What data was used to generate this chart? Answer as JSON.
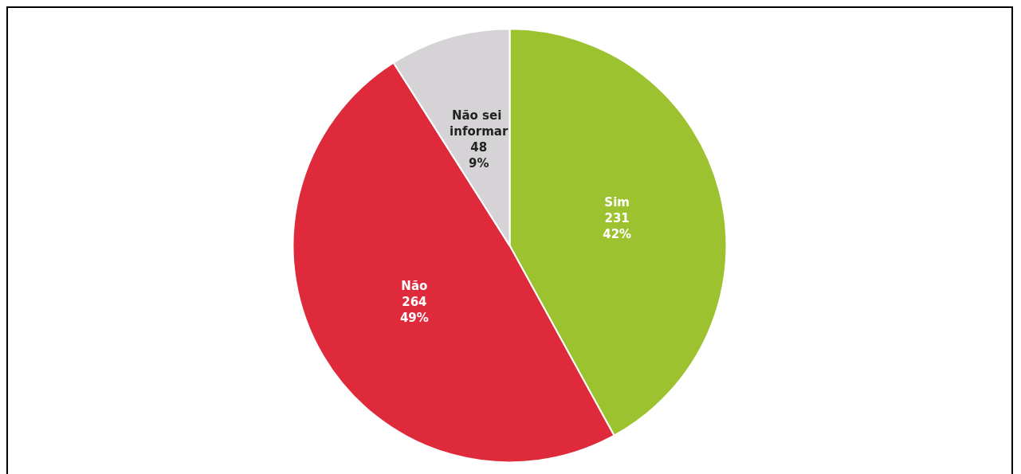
{
  "chart_data": {
    "type": "pie",
    "categories": [
      "Sim",
      "Não",
      "Não sei informar"
    ],
    "values": [
      42,
      49,
      9
    ],
    "colors": [
      "#9dc22f",
      "#de2a3b",
      "#d6d3d6"
    ],
    "value_labels": [
      "231\n42%",
      "264\n49%",
      "48\n9%"
    ]
  }
}
